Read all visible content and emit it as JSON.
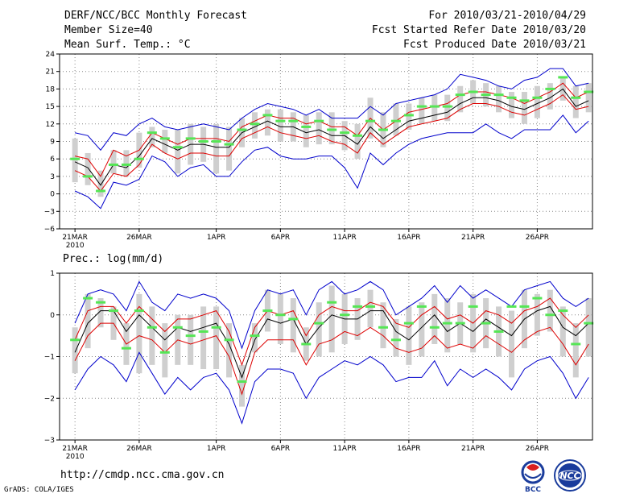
{
  "header": {
    "line1_left": "DERF/NCC/BCC Monthly Forecast",
    "line2_left": "Member Size=40",
    "line3_left": "Mean Surf. Temp.: °C",
    "line1_right": "For 2010/03/21-2010/04/29",
    "line2_right": "Fcst Started Refer Date 2010/03/20",
    "line3_right": "Fcst Produced Date 2010/03/21"
  },
  "footer": {
    "url": "http://cmdp.ncc.cma.gov.cn",
    "credit": "GrADS: COLA/IGES",
    "logo1_text": "BCC",
    "logo2_text": "NCC"
  },
  "colors": {
    "envelope": "#0000cc",
    "spread": "#dd0000",
    "mean": "#000000",
    "box": "#cfcfcf",
    "observed": "#55e655"
  },
  "chart_data": [
    {
      "type": "ensemble-box",
      "title": "Mean Surf. Temp.: °C",
      "ylim": [
        -6,
        24
      ],
      "yticks": [
        -6,
        -3,
        0,
        3,
        6,
        9,
        12,
        15,
        18,
        21,
        24
      ],
      "ytick_labels": [
        "−6",
        "−3",
        "0",
        "3",
        "6",
        "9",
        "12",
        "15",
        "18",
        "21",
        "24"
      ],
      "xtick_labels": [
        "21MAR",
        "26MAR",
        "1APR",
        "6APR",
        "11APR",
        "16APR",
        "21APR",
        "26APR"
      ],
      "xtick_days": [
        0,
        5,
        11,
        16,
        21,
        26,
        31,
        36
      ],
      "year_label": "2010",
      "days": 40,
      "mean": [
        5.5,
        4.5,
        1.5,
        5.0,
        4.5,
        6.5,
        9.5,
        8.5,
        7.5,
        8.5,
        8.5,
        8.0,
        8.0,
        10.5,
        11.5,
        12.5,
        11.5,
        11.5,
        10.5,
        11.0,
        10.0,
        10.0,
        8.5,
        11.5,
        9.5,
        11.0,
        12.5,
        13.0,
        13.5,
        14.0,
        15.5,
        16.5,
        16.5,
        16.0,
        15.0,
        14.5,
        15.5,
        16.5,
        18.0,
        15.0,
        16.0
      ],
      "upper": [
        10.5,
        10.0,
        7.5,
        10.5,
        10.0,
        12.0,
        13.0,
        11.5,
        11.0,
        11.5,
        12.0,
        11.5,
        11.0,
        13.0,
        14.5,
        15.5,
        15.0,
        14.5,
        13.5,
        14.5,
        13.0,
        13.0,
        13.0,
        15.0,
        13.5,
        15.5,
        16.0,
        16.5,
        17.0,
        18.0,
        20.5,
        20.0,
        19.5,
        18.5,
        18.0,
        19.5,
        20.0,
        21.5,
        21.5,
        18.5,
        19.0
      ],
      "lower": [
        0.5,
        -0.5,
        -2.5,
        2.0,
        1.5,
        2.5,
        6.5,
        5.5,
        3.0,
        4.5,
        5.0,
        3.0,
        3.0,
        5.5,
        7.5,
        8.0,
        6.5,
        6.0,
        6.0,
        6.5,
        6.5,
        4.5,
        1.0,
        7.0,
        5.0,
        7.0,
        8.5,
        9.5,
        10.0,
        10.5,
        10.5,
        10.5,
        12.0,
        10.5,
        9.5,
        11.0,
        11.0,
        11.0,
        13.5,
        10.5,
        12.5
      ],
      "inner_upper": [
        6.5,
        6.0,
        3.0,
        7.5,
        6.5,
        7.5,
        10.5,
        9.5,
        8.5,
        9.5,
        9.5,
        9.5,
        9.0,
        11.5,
        12.5,
        13.5,
        13.0,
        13.0,
        12.0,
        12.5,
        11.5,
        11.5,
        10.0,
        13.0,
        11.0,
        12.5,
        14.0,
        14.5,
        15.0,
        15.5,
        17.0,
        17.5,
        17.5,
        17.0,
        16.5,
        15.5,
        16.5,
        17.5,
        19.0,
        16.5,
        17.5
      ],
      "inner_lower": [
        4.0,
        3.0,
        0.5,
        3.5,
        3.0,
        5.0,
        8.5,
        7.0,
        6.0,
        7.0,
        7.0,
        6.5,
        6.5,
        9.5,
        10.5,
        11.5,
        10.5,
        10.0,
        9.5,
        10.0,
        9.0,
        8.5,
        7.0,
        10.5,
        8.5,
        10.0,
        11.5,
        12.0,
        12.5,
        13.0,
        14.5,
        15.5,
        15.5,
        15.0,
        14.0,
        13.5,
        14.5,
        15.5,
        17.0,
        14.5,
        15.0
      ],
      "box_top": [
        9.5,
        7.0,
        4.0,
        7.5,
        7.5,
        10.5,
        11.5,
        11.0,
        11.0,
        12.0,
        11.5,
        12.0,
        11.5,
        13.0,
        14.0,
        14.5,
        14.5,
        14.0,
        13.5,
        14.0,
        14.0,
        12.5,
        12.0,
        16.5,
        14.0,
        15.5,
        15.5,
        16.5,
        17.0,
        17.0,
        18.5,
        19.5,
        19.0,
        18.5,
        17.5,
        17.5,
        18.5,
        19.0,
        20.0,
        18.5,
        19.0
      ],
      "box_bottom": [
        2.0,
        1.5,
        -0.5,
        3.5,
        3.0,
        4.5,
        8.0,
        7.0,
        3.5,
        5.0,
        5.5,
        3.5,
        4.0,
        8.0,
        9.5,
        10.0,
        9.0,
        9.0,
        8.0,
        8.5,
        8.5,
        7.5,
        6.0,
        9.5,
        8.0,
        10.0,
        11.0,
        12.0,
        12.5,
        12.5,
        14.0,
        15.5,
        15.0,
        14.0,
        13.0,
        12.0,
        13.0,
        14.5,
        16.0,
        13.0,
        14.0
      ],
      "observed": [
        6.0,
        3.0,
        0.5,
        5.0,
        5.0,
        6.0,
        10.5,
        9.5,
        8.0,
        9.5,
        9.0,
        9.0,
        8.5,
        11.0,
        12.0,
        13.5,
        12.5,
        12.5,
        11.5,
        12.5,
        11.0,
        10.5,
        10.0,
        12.5,
        11.0,
        12.5,
        13.5,
        15.0,
        15.0,
        15.0,
        17.0,
        17.5,
        17.0,
        17.0,
        16.5,
        16.0,
        16.5,
        18.0,
        20.0,
        16.5,
        17.5
      ]
    },
    {
      "type": "ensemble-box",
      "title": "Prec.: log(mm/d)",
      "ylim": [
        -3,
        1
      ],
      "yticks": [
        -3,
        -2,
        -1,
        0,
        1
      ],
      "ytick_labels": [
        "−3",
        "−2",
        "−1",
        "0",
        "1"
      ],
      "xtick_labels": [
        "21MAR",
        "26MAR",
        "1APR",
        "6APR",
        "11APR",
        "16APR",
        "21APR",
        "26APR"
      ],
      "xtick_days": [
        0,
        5,
        11,
        16,
        21,
        26,
        31,
        36
      ],
      "year_label": "2010",
      "days": 40,
      "mean": [
        -0.9,
        -0.2,
        0.1,
        0.1,
        -0.4,
        0.0,
        -0.3,
        -0.6,
        -0.3,
        -0.4,
        -0.3,
        -0.2,
        -0.7,
        -1.5,
        -0.6,
        -0.1,
        -0.2,
        -0.1,
        -0.7,
        -0.3,
        0.0,
        -0.1,
        -0.1,
        0.1,
        0.1,
        -0.4,
        -0.6,
        -0.3,
        0.0,
        -0.4,
        -0.2,
        -0.4,
        -0.1,
        -0.3,
        -0.5,
        -0.1,
        0.1,
        0.2,
        -0.3,
        -0.5,
        -0.2
      ],
      "upper": [
        -0.2,
        0.5,
        0.6,
        0.5,
        0.1,
        0.8,
        0.3,
        0.1,
        0.5,
        0.4,
        0.5,
        0.4,
        0.1,
        -0.8,
        0.1,
        0.6,
        0.5,
        0.6,
        0.0,
        0.6,
        0.8,
        0.5,
        0.6,
        0.8,
        0.6,
        0.0,
        0.2,
        0.4,
        0.7,
        0.3,
        0.7,
        0.4,
        0.6,
        0.4,
        0.2,
        0.6,
        0.7,
        0.8,
        0.4,
        0.2,
        0.4
      ],
      "lower": [
        -1.8,
        -1.3,
        -1.0,
        -1.2,
        -1.6,
        -0.9,
        -1.4,
        -1.9,
        -1.5,
        -1.8,
        -1.5,
        -1.4,
        -1.8,
        -2.6,
        -1.6,
        -1.3,
        -1.3,
        -1.4,
        -2.0,
        -1.5,
        -1.3,
        -1.1,
        -1.2,
        -1.0,
        -1.2,
        -1.6,
        -1.5,
        -1.5,
        -1.1,
        -1.7,
        -1.3,
        -1.5,
        -1.3,
        -1.5,
        -1.8,
        -1.3,
        -1.1,
        -1.0,
        -1.4,
        -2.0,
        -1.5
      ],
      "inner_upper": [
        -0.6,
        0.1,
        0.2,
        0.2,
        -0.2,
        0.2,
        -0.1,
        -0.4,
        -0.1,
        -0.1,
        0.0,
        0.1,
        -0.4,
        -1.2,
        -0.3,
        0.1,
        0.0,
        0.1,
        -0.5,
        0.0,
        0.2,
        0.1,
        0.1,
        0.3,
        0.2,
        -0.2,
        -0.3,
        0.0,
        0.2,
        -0.1,
        0.0,
        -0.2,
        0.1,
        0.0,
        -0.2,
        0.1,
        0.2,
        0.4,
        0.0,
        -0.3,
        0.0
      ],
      "inner_lower": [
        -1.1,
        -0.5,
        -0.2,
        -0.2,
        -0.7,
        -0.5,
        -0.6,
        -0.9,
        -0.6,
        -0.7,
        -0.6,
        -0.5,
        -1.0,
        -1.9,
        -0.9,
        -0.6,
        -0.6,
        -0.6,
        -1.2,
        -0.7,
        -0.6,
        -0.4,
        -0.5,
        -0.3,
        -0.5,
        -0.8,
        -0.9,
        -0.8,
        -0.5,
        -0.8,
        -0.7,
        -0.8,
        -0.5,
        -0.7,
        -0.9,
        -0.6,
        -0.4,
        -0.3,
        -0.7,
        -1.2,
        -0.7
      ],
      "box_top": [
        -0.3,
        0.5,
        0.4,
        0.2,
        -0.2,
        0.5,
        0.2,
        -0.2,
        0.0,
        0.0,
        0.2,
        0.2,
        -0.2,
        -1.2,
        -0.2,
        0.6,
        0.5,
        0.4,
        -0.3,
        0.3,
        0.7,
        0.5,
        0.4,
        0.6,
        0.3,
        -0.1,
        0.2,
        0.3,
        0.5,
        0.4,
        0.3,
        0.5,
        0.4,
        0.2,
        0.1,
        0.6,
        0.5,
        0.6,
        0.2,
        -0.2,
        0.4
      ],
      "box_bottom": [
        -1.4,
        -0.8,
        -0.3,
        -0.6,
        -1.2,
        -1.4,
        -1.2,
        -1.5,
        -1.2,
        -1.2,
        -1.3,
        -1.3,
        -1.5,
        -2.2,
        -0.9,
        -0.4,
        -0.7,
        -0.9,
        -1.1,
        -1.0,
        -0.9,
        -0.7,
        -0.6,
        -0.3,
        -0.8,
        -1.0,
        -1.2,
        -1.0,
        -0.7,
        -0.9,
        -0.7,
        -0.9,
        -0.8,
        -1.0,
        -1.5,
        -0.8,
        -0.5,
        -0.4,
        -1.0,
        -1.5,
        -1.0
      ],
      "observed": [
        -0.6,
        0.4,
        0.3,
        0.1,
        -0.8,
        0.1,
        -0.3,
        -0.9,
        -0.3,
        -0.5,
        -0.4,
        -0.3,
        -0.6,
        -1.6,
        -0.5,
        0.1,
        0.0,
        -0.1,
        -0.7,
        -0.2,
        0.3,
        0.0,
        0.2,
        0.2,
        -0.3,
        -0.6,
        -0.2,
        0.2,
        -0.3,
        -0.2,
        -0.2,
        0.2,
        -0.2,
        -0.4,
        0.2,
        0.2,
        0.4,
        0.0,
        0.1,
        -0.7,
        -0.2
      ]
    }
  ]
}
